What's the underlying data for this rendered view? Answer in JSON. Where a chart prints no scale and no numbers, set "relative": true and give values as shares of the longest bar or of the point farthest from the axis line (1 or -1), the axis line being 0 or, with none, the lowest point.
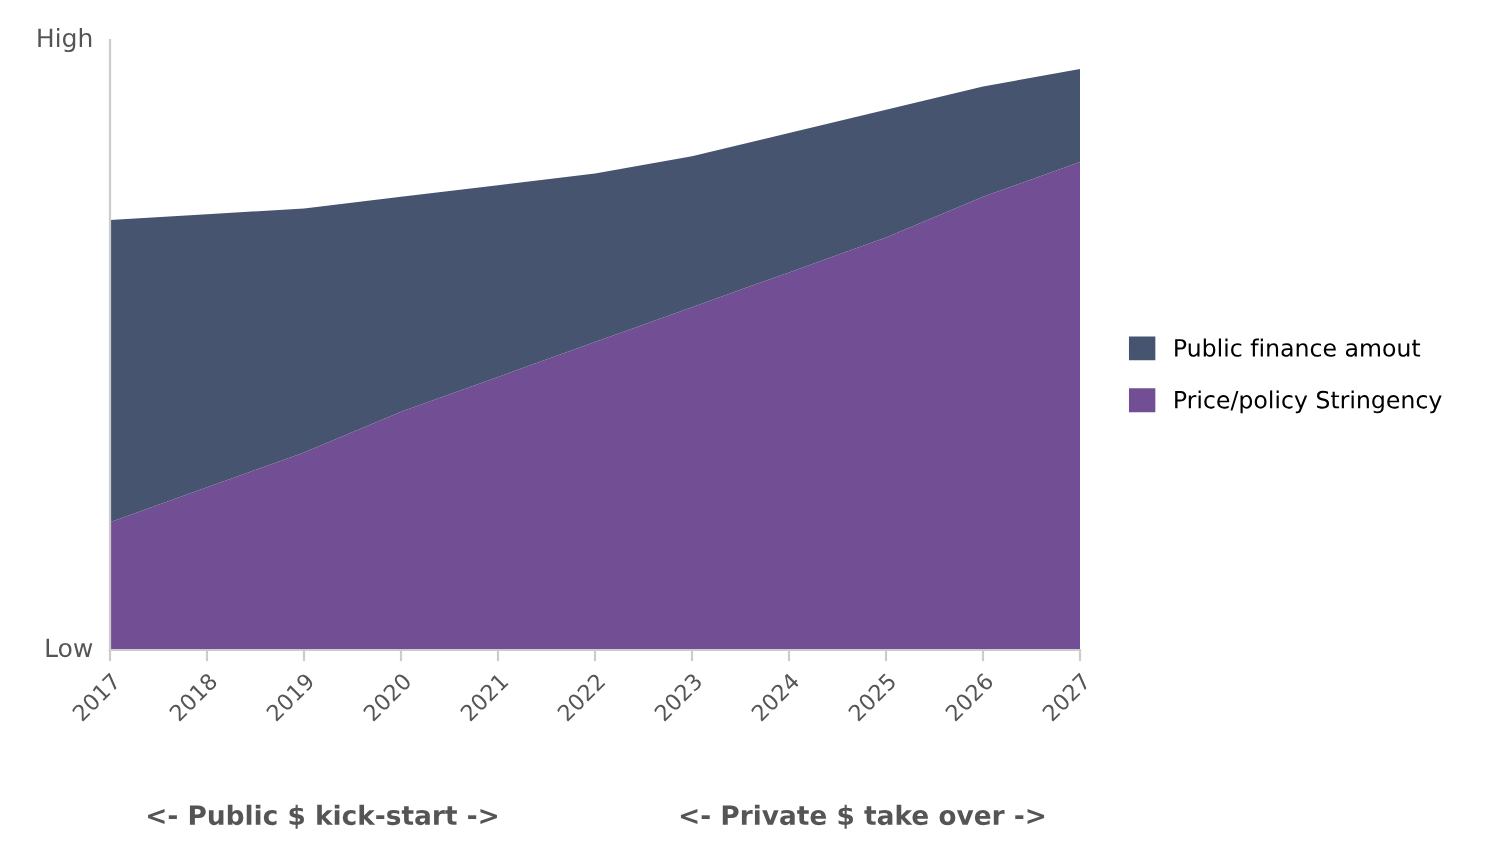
{
  "chart_data": {
    "type": "area",
    "stacked": true,
    "relative": true,
    "categories": [
      "2017",
      "2018",
      "2019",
      "2020",
      "2021",
      "2022",
      "2023",
      "2024",
      "2025",
      "2026",
      "2027"
    ],
    "series": [
      {
        "name": "Price/policy Stringency",
        "color": "#724f94",
        "values": [
          0.22,
          0.28,
          0.34,
          0.41,
          0.47,
          0.53,
          0.59,
          0.65,
          0.71,
          0.78,
          0.84
        ]
      },
      {
        "name": "Public finance amout",
        "color": "#475470",
        "values": [
          0.52,
          0.47,
          0.42,
          0.37,
          0.33,
          0.29,
          0.26,
          0.24,
          0.22,
          0.19,
          0.16
        ]
      }
    ],
    "legend": "right",
    "annotations": [
      "High",
      "Low",
      "<- Public $ kick-start ->",
      "<- Private $ take over ->"
    ]
  }
}
